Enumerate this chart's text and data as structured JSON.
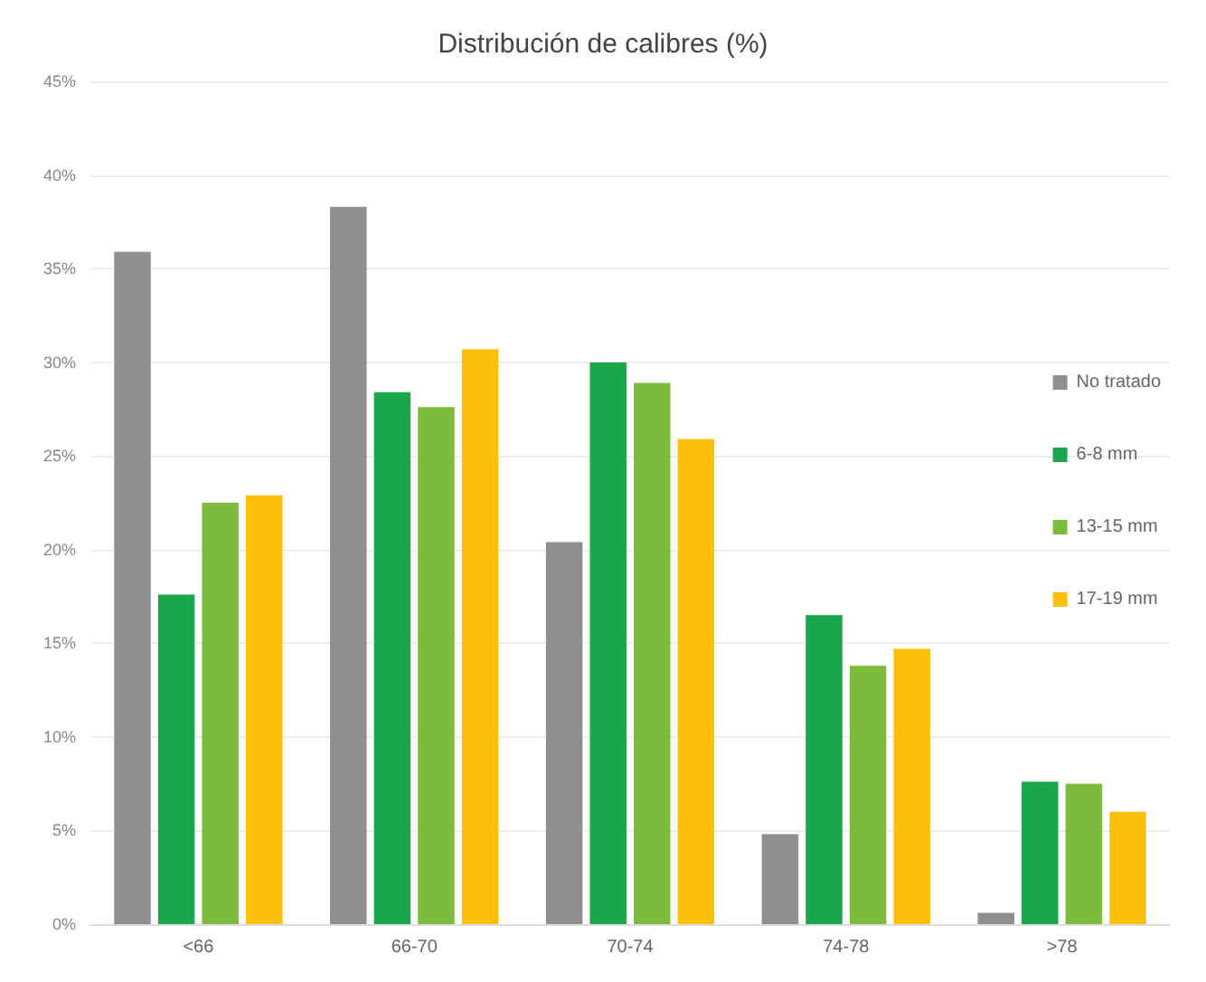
{
  "chart_data": {
    "type": "bar",
    "title": "Distribución de calibres (%)",
    "categories": [
      "<66",
      "66-70",
      "70-74",
      "74-78",
      ">78"
    ],
    "series": [
      {
        "name": "No tratado",
        "color": "#8f8f8f",
        "values": [
          35.9,
          38.3,
          20.4,
          4.8,
          0.6
        ]
      },
      {
        "name": "6-8 mm",
        "color": "#1aa64a",
        "values": [
          17.6,
          28.4,
          30.0,
          16.5,
          7.6
        ]
      },
      {
        "name": "13-15 mm",
        "color": "#7dbb3c",
        "values": [
          22.5,
          27.6,
          28.9,
          13.8,
          7.5
        ]
      },
      {
        "name": "17-19 mm",
        "color": "#fbbf0c",
        "values": [
          22.9,
          30.7,
          25.9,
          14.7,
          6.0
        ]
      }
    ],
    "ylim": [
      0,
      45
    ],
    "yticks": [
      {
        "value": 0,
        "label": "0%"
      },
      {
        "value": 5,
        "label": "5%"
      },
      {
        "value": 10,
        "label": "10%"
      },
      {
        "value": 15,
        "label": "15%"
      },
      {
        "value": 20,
        "label": "20%"
      },
      {
        "value": 25,
        "label": "25%"
      },
      {
        "value": 30,
        "label": "30%"
      },
      {
        "value": 35,
        "label": "35%"
      },
      {
        "value": 40,
        "label": "40%"
      },
      {
        "value": 45,
        "label": "45%"
      }
    ],
    "grid": "y",
    "legend": "right"
  }
}
